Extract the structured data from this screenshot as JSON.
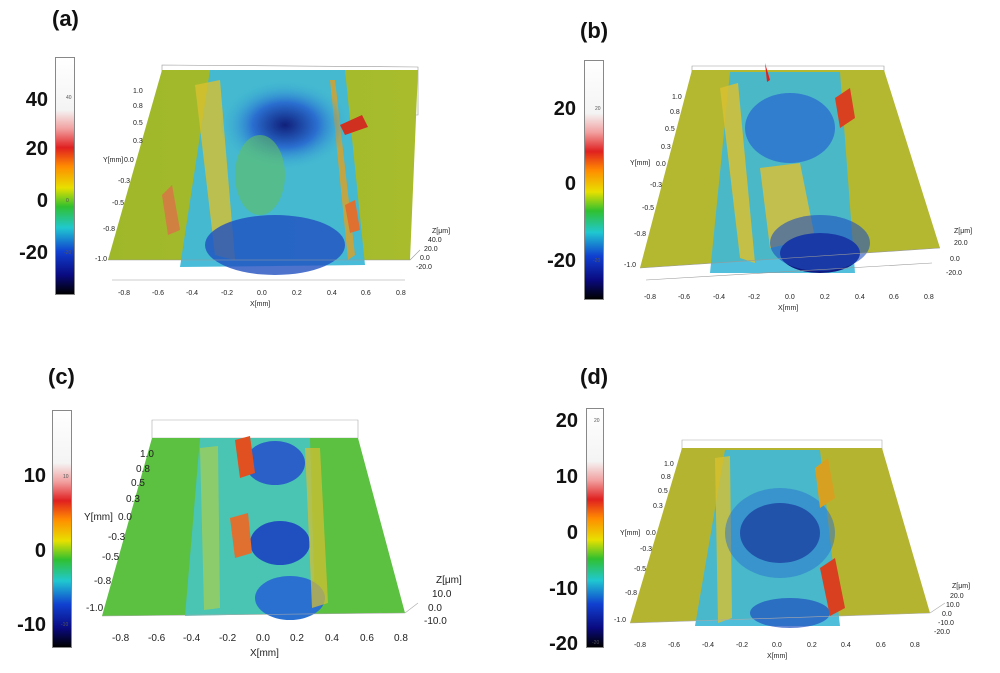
{
  "panels": [
    {
      "label": "(a)",
      "colorbar": {
        "major_ticks": [
          "40",
          "20",
          "0",
          "-20"
        ],
        "minor_ticks": [
          "40",
          "0",
          "-20"
        ]
      },
      "y_ticks": [
        "1.0",
        "0.8",
        "0.5",
        "0.3",
        "0.0",
        "-0.3",
        "-0.5",
        "-0.8",
        "-1.0"
      ],
      "y_label": "Y[mm]",
      "x_ticks": [
        "-0.8",
        "-0.6",
        "-0.4",
        "-0.2",
        "0.0",
        "0.2",
        "0.4",
        "0.6",
        "0.8"
      ],
      "x_label": "X[mm]",
      "z_label": "Z[μm]",
      "z_ticks": [
        "40.0",
        "20.0",
        "0.0",
        "-20.0"
      ]
    },
    {
      "label": "(b)",
      "colorbar": {
        "major_ticks": [
          "20",
          "0",
          "-20"
        ],
        "minor_ticks": [
          "20",
          "-20"
        ]
      },
      "y_ticks": [
        "1.0",
        "0.8",
        "0.5",
        "0.3",
        "0.0",
        "-0.3",
        "-0.5",
        "-0.8",
        "-1.0"
      ],
      "y_label": "Y[mm]",
      "x_ticks": [
        "-0.8",
        "-0.6",
        "-0.4",
        "-0.2",
        "0.0",
        "0.2",
        "0.4",
        "0.6",
        "0.8"
      ],
      "x_label": "X[mm]",
      "z_label": "Z[μm]",
      "z_ticks": [
        "20.0",
        "0.0",
        "-20.0"
      ]
    },
    {
      "label": "(c)",
      "colorbar": {
        "major_ticks": [
          "10",
          "0",
          "-10"
        ],
        "minor_ticks": [
          "10",
          "-10"
        ]
      },
      "y_ticks": [
        "1.0",
        "0.8",
        "0.5",
        "0.3",
        "0.0",
        "-0.3",
        "-0.5",
        "-0.8",
        "-1.0"
      ],
      "y_label": "Y[mm]",
      "x_ticks": [
        "-0.8",
        "-0.6",
        "-0.4",
        "-0.2",
        "0.0",
        "0.2",
        "0.4",
        "0.6",
        "0.8"
      ],
      "x_label": "X[mm]",
      "z_label": "Z[μm]",
      "z_ticks": [
        "10.0",
        "0.0",
        "-10.0"
      ]
    },
    {
      "label": "(d)",
      "colorbar": {
        "major_ticks": [
          "20",
          "10",
          "0",
          "-10",
          "-20"
        ],
        "minor_ticks": [
          "20",
          "-20"
        ]
      },
      "y_ticks": [
        "1.0",
        "0.8",
        "0.5",
        "0.3",
        "0.0",
        "-0.3",
        "-0.5",
        "-0.8",
        "-1.0"
      ],
      "y_label": "Y[mm]",
      "x_ticks": [
        "-0.8",
        "-0.6",
        "-0.4",
        "-0.2",
        "0.0",
        "0.2",
        "0.4",
        "0.6",
        "0.8"
      ],
      "x_label": "X[mm]",
      "z_label": "Z[μm]",
      "z_ticks": [
        "20.0",
        "10.0",
        "0.0",
        "-10.0",
        "-20.0"
      ]
    }
  ]
}
